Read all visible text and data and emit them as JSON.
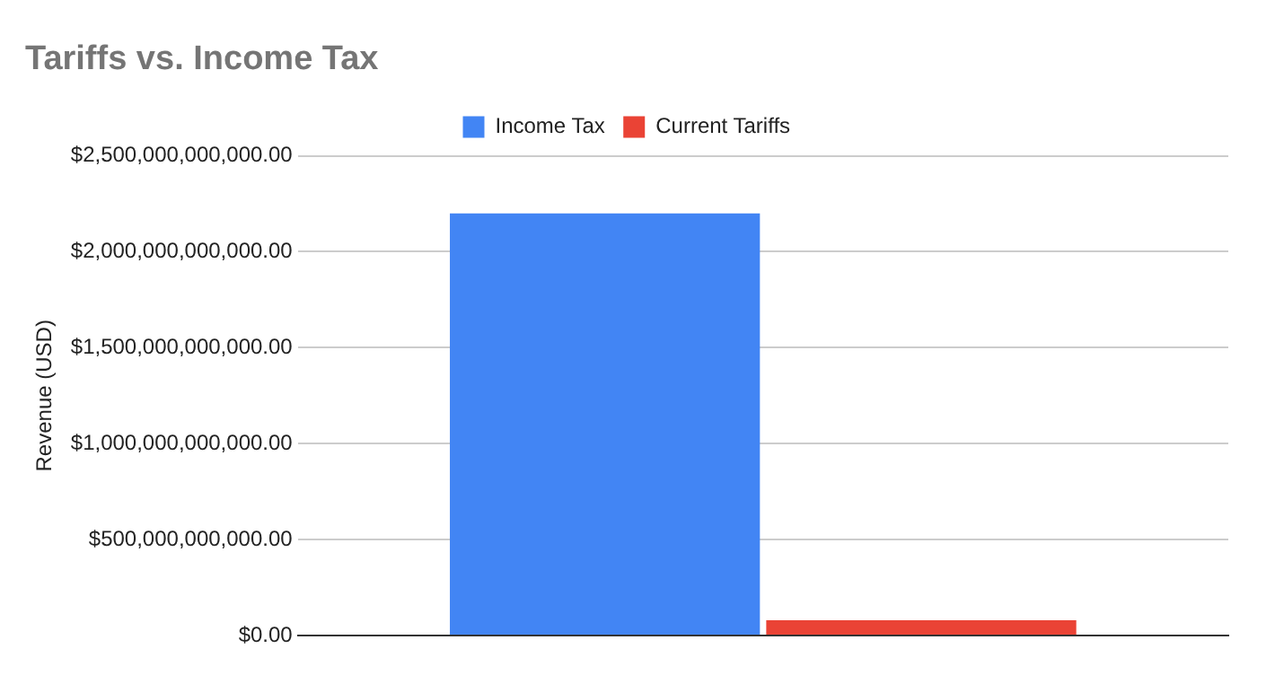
{
  "chart_data": {
    "type": "bar",
    "title": "Tariffs vs. Income Tax",
    "ylabel": "Revenue (USD)",
    "categories": [
      null
    ],
    "series": [
      {
        "name": "Income Tax",
        "color": "#4285f4",
        "values": [
          2200000000000
        ]
      },
      {
        "name": "Current Tariffs",
        "color": "#ea4335",
        "values": [
          80000000000
        ]
      }
    ],
    "ylim": [
      0,
      2500000000000
    ],
    "yticks": [
      {
        "value": 0,
        "label": "$0.00"
      },
      {
        "value": 500000000000,
        "label": "$500,000,000,000.00"
      },
      {
        "value": 1000000000000,
        "label": "$1,000,000,000,000.00"
      },
      {
        "value": 1500000000000,
        "label": "$1,500,000,000,000.00"
      },
      {
        "value": 2000000000000,
        "label": "$2,000,000,000,000.00"
      },
      {
        "value": 2500000000000,
        "label": "$2,500,000,000,000.00"
      }
    ],
    "grid": "y",
    "legend": "top",
    "tick_labels": "y"
  }
}
